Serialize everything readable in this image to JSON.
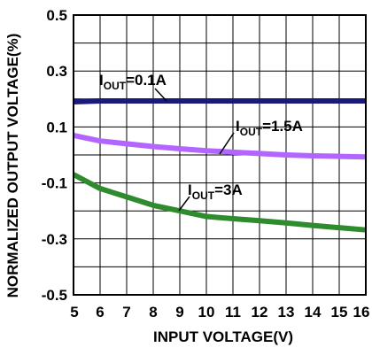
{
  "chart_data": {
    "type": "line",
    "title": "",
    "xlabel": "INPUT VOLTAGE(V)",
    "ylabel": "NORMALIZED OUTPUT VOLTAGE(%)",
    "xlim": [
      5,
      16
    ],
    "ylim": [
      -0.5,
      0.5
    ],
    "grid": true,
    "x_ticks": [
      "5",
      "6",
      "7",
      "8",
      "9",
      "10",
      "11",
      "12",
      "13",
      "14",
      "15",
      "16"
    ],
    "y_ticks": [
      "0.5",
      "0.3",
      "0.1",
      "-0.1",
      "-0.3",
      "-0.5"
    ],
    "x": [
      5,
      6,
      7,
      8,
      9,
      10,
      11,
      12,
      13,
      14,
      15,
      16
    ],
    "series": [
      {
        "name": "IOUT=0.1A",
        "label_main": "I",
        "label_sub": "OUT",
        "label_rest": "=0.1A",
        "color": "#1a1a7a",
        "values": [
          0.19,
          0.193,
          0.193,
          0.193,
          0.193,
          0.193,
          0.193,
          0.193,
          0.193,
          0.193,
          0.193,
          0.193
        ]
      },
      {
        "name": "IOUT=1.5A",
        "label_main": "I",
        "label_sub": "OUT",
        "label_rest": "=1.5A",
        "color": "#b266ff",
        "values": [
          0.07,
          0.05,
          0.04,
          0.03,
          0.022,
          0.015,
          0.01,
          0.005,
          0.0,
          -0.003,
          -0.005,
          -0.007
        ]
      },
      {
        "name": "IOUT=3A",
        "label_main": "I",
        "label_sub": "OUT",
        "label_rest": "=3A",
        "color": "#2e8b2e",
        "values": [
          -0.07,
          -0.12,
          -0.15,
          -0.18,
          -0.2,
          -0.22,
          -0.228,
          -0.235,
          -0.243,
          -0.252,
          -0.26,
          -0.268
        ]
      }
    ]
  }
}
